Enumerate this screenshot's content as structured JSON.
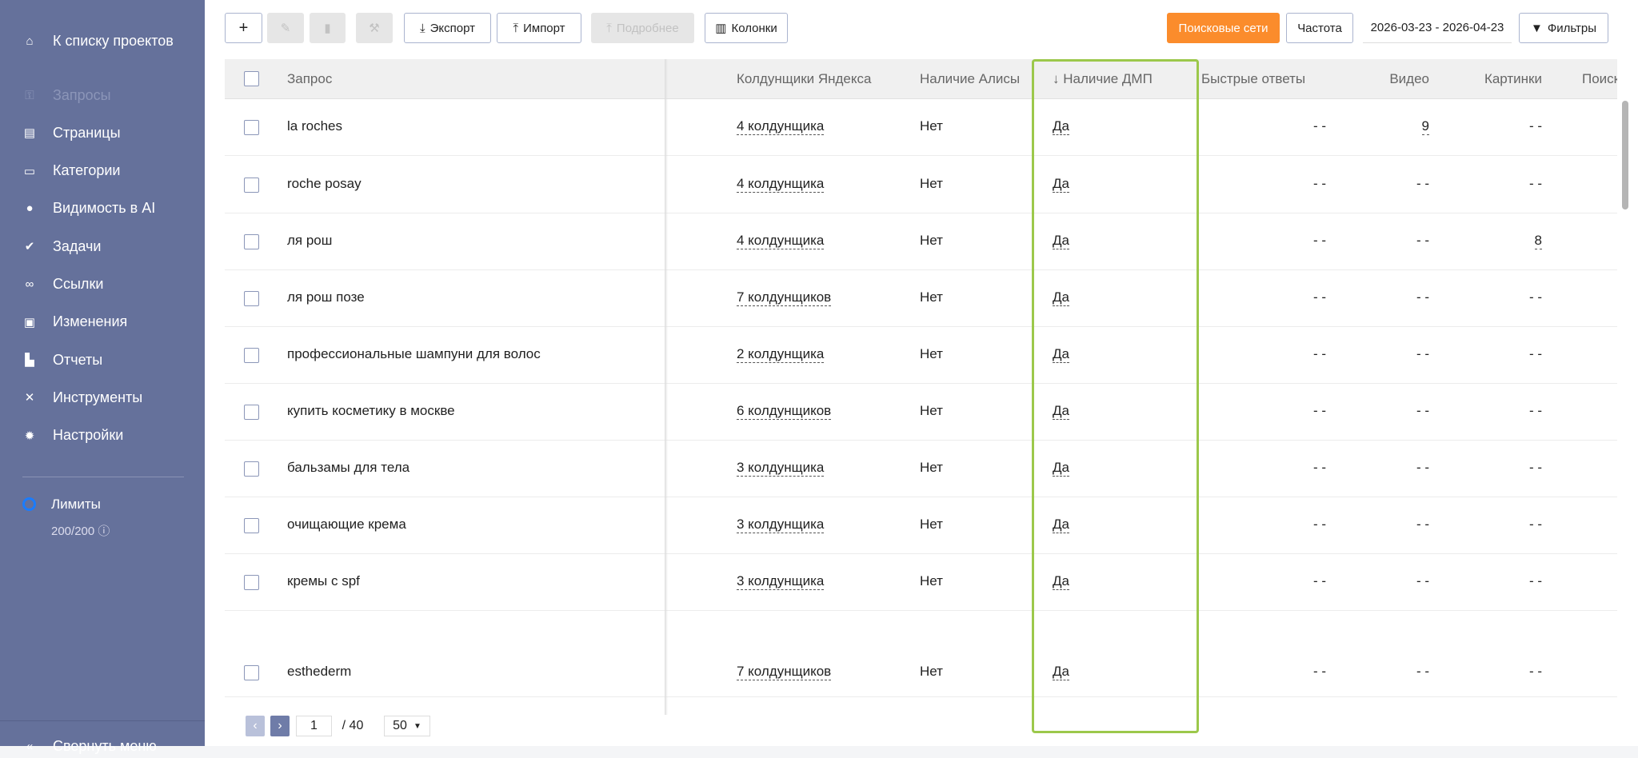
{
  "sidebar": {
    "back": "К списку проектов",
    "items": [
      {
        "label": "Запросы",
        "icon": "key-icon",
        "active": true
      },
      {
        "label": "Страницы",
        "icon": "page-icon"
      },
      {
        "label": "Категории",
        "icon": "folder-icon"
      },
      {
        "label": "Видимость в AI",
        "icon": "ai-head-icon"
      },
      {
        "label": "Задачи",
        "icon": "task-icon"
      },
      {
        "label": "Ссылки",
        "icon": "link-icon"
      },
      {
        "label": "Изменения",
        "icon": "changes-icon"
      },
      {
        "label": "Отчеты",
        "icon": "report-icon"
      },
      {
        "label": "Инструменты",
        "icon": "tools-icon"
      },
      {
        "label": "Настройки",
        "icon": "gear-icon"
      }
    ],
    "limits_label": "Лимиты",
    "limits_value": "200/200",
    "collapse": "Свернуть меню"
  },
  "toolbar": {
    "add": "+",
    "export": "Экспорт",
    "import": "Импорт",
    "details": "Подробнее",
    "columns": "Колонки",
    "search_engines": "Поисковые сети",
    "frequency": "Частота",
    "date_range": "2026-03-23 - 2026-04-23",
    "filters": "Фильтры"
  },
  "table": {
    "headers": {
      "query": "Запрос",
      "wizards": "Колдунщики Яндекса",
      "alice": "Наличие Алисы",
      "dmp": "↓ Наличие ДМП",
      "quick": "Быстрые ответы",
      "video": "Видео",
      "images": "Картинки",
      "search": "Поиск"
    },
    "rows": [
      {
        "query": "la roches",
        "wizards": "4 колдунщика",
        "alice": "Нет",
        "dmp": "Да",
        "quick": "- -",
        "video": "9",
        "images": "- -"
      },
      {
        "query": "roche posay",
        "wizards": "4 колдунщика",
        "alice": "Нет",
        "dmp": "Да",
        "quick": "- -",
        "video": "- -",
        "images": "- -"
      },
      {
        "query": "ля рош",
        "wizards": "4 колдунщика",
        "alice": "Нет",
        "dmp": "Да",
        "quick": "- -",
        "video": "- -",
        "images": "8"
      },
      {
        "query": "ля рош позе",
        "wizards": "7 колдунщиков",
        "alice": "Нет",
        "dmp": "Да",
        "quick": "- -",
        "video": "- -",
        "images": "- -"
      },
      {
        "query": "профессиональные шампуни для волос",
        "wizards": "2 колдунщика",
        "alice": "Нет",
        "dmp": "Да",
        "quick": "- -",
        "video": "- -",
        "images": "- -"
      },
      {
        "query": "купить косметику в москве",
        "wizards": "6 колдунщиков",
        "alice": "Нет",
        "dmp": "Да",
        "quick": "- -",
        "video": "- -",
        "images": "- -"
      },
      {
        "query": "бальзамы для тела",
        "wizards": "3 колдунщика",
        "alice": "Нет",
        "dmp": "Да",
        "quick": "- -",
        "video": "- -",
        "images": "- -"
      },
      {
        "query": "очищающие крема",
        "wizards": "3 колдунщика",
        "alice": "Нет",
        "dmp": "Да",
        "quick": "- -",
        "video": "- -",
        "images": "- -"
      },
      {
        "query": "кремы с spf",
        "wizards": "3 колдунщика",
        "alice": "Нет",
        "dmp": "Да",
        "quick": "- -",
        "video": "- -",
        "images": "- -"
      },
      {
        "query": "esthederm",
        "wizards": "7 колдунщиков",
        "alice": "Нет",
        "dmp": "Да",
        "quick": "- -",
        "video": "- -",
        "images": "- -"
      }
    ]
  },
  "pagination": {
    "page": "1",
    "total": "/ 40",
    "per_page": "50"
  },
  "colors": {
    "sidebar": "#65719b",
    "accent": "#fb8c2c",
    "highlight": "#9cc84b"
  }
}
